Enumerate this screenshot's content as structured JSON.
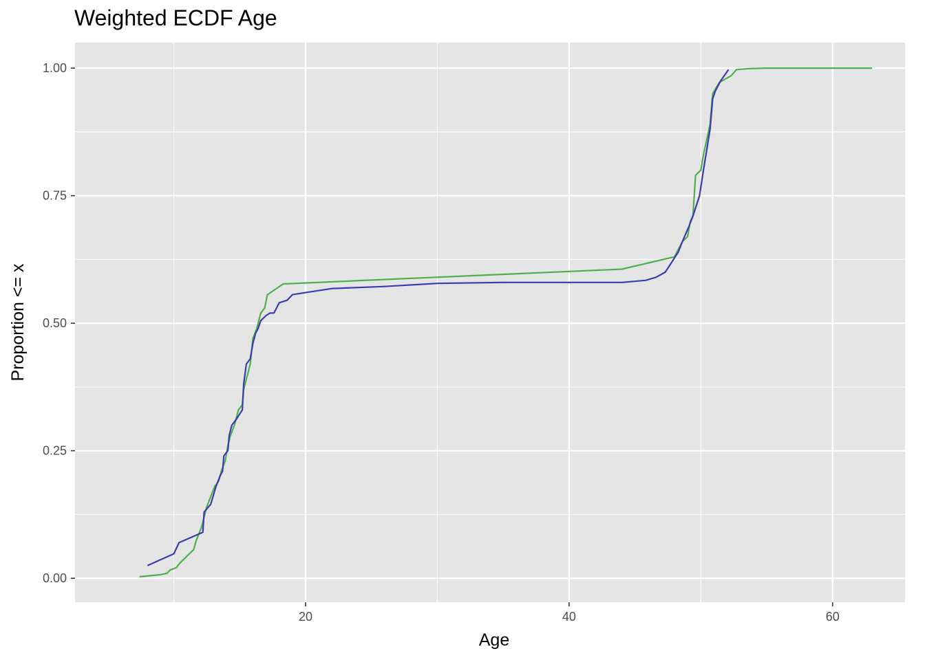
{
  "chart_data": {
    "type": "line",
    "title": "Weighted ECDF Age",
    "xlabel": "Age",
    "ylabel": "Proportion <= x",
    "xlim": [
      2.5,
      65.5
    ],
    "ylim": [
      -0.047,
      1.05
    ],
    "x_ticks": [
      20,
      40,
      60
    ],
    "x_tick_labels": [
      "20",
      "40",
      "60"
    ],
    "y_ticks": [
      0,
      0.25,
      0.5,
      0.75,
      1
    ],
    "y_tick_labels": [
      "0.00",
      "0.25",
      "0.50",
      "0.75",
      "1.00"
    ],
    "grid": true,
    "background": "#e5e5e5",
    "series": [
      {
        "color": "#4daf4a",
        "points": [
          [
            7.4,
            0.003
          ],
          [
            9.0,
            0.007
          ],
          [
            9.5,
            0.01
          ],
          [
            9.7,
            0.016
          ],
          [
            10.2,
            0.021
          ],
          [
            10.4,
            0.028
          ],
          [
            11.1,
            0.046
          ],
          [
            11.5,
            0.056
          ],
          [
            11.7,
            0.074
          ],
          [
            12.1,
            0.1
          ],
          [
            12.3,
            0.12
          ],
          [
            12.5,
            0.14
          ],
          [
            12.8,
            0.16
          ],
          [
            13.1,
            0.18
          ],
          [
            13.4,
            0.19
          ],
          [
            13.6,
            0.21
          ],
          [
            13.9,
            0.23
          ],
          [
            14.1,
            0.26
          ],
          [
            14.3,
            0.28
          ],
          [
            14.6,
            0.3
          ],
          [
            14.9,
            0.33
          ],
          [
            15.2,
            0.34
          ],
          [
            15.3,
            0.37
          ],
          [
            15.5,
            0.39
          ],
          [
            15.8,
            0.42
          ],
          [
            16.0,
            0.47
          ],
          [
            16.3,
            0.49
          ],
          [
            16.6,
            0.52
          ],
          [
            16.9,
            0.53
          ],
          [
            17.1,
            0.556
          ],
          [
            18.3,
            0.577
          ],
          [
            44.0,
            0.606
          ],
          [
            48.0,
            0.63
          ],
          [
            48.6,
            0.66
          ],
          [
            49.0,
            0.67
          ],
          [
            49.2,
            0.7
          ],
          [
            49.4,
            0.71
          ],
          [
            49.6,
            0.79
          ],
          [
            50.0,
            0.8
          ],
          [
            50.2,
            0.83
          ],
          [
            50.7,
            0.89
          ],
          [
            50.9,
            0.95
          ],
          [
            51.4,
            0.972
          ],
          [
            52.3,
            0.985
          ],
          [
            52.7,
            0.997
          ],
          [
            53.6,
            0.999
          ],
          [
            55.0,
            1.0
          ],
          [
            63.0,
            1.0
          ]
        ]
      },
      {
        "color": "#3a3ab0",
        "points": [
          [
            8.0,
            0.025
          ],
          [
            10.0,
            0.048
          ],
          [
            10.4,
            0.07
          ],
          [
            12.2,
            0.09
          ],
          [
            12.3,
            0.13
          ],
          [
            12.8,
            0.145
          ],
          [
            13.2,
            0.18
          ],
          [
            13.5,
            0.2
          ],
          [
            13.7,
            0.21
          ],
          [
            13.8,
            0.24
          ],
          [
            14.1,
            0.25
          ],
          [
            14.2,
            0.28
          ],
          [
            14.4,
            0.3
          ],
          [
            14.7,
            0.31
          ],
          [
            15.2,
            0.33
          ],
          [
            15.3,
            0.38
          ],
          [
            15.5,
            0.42
          ],
          [
            15.8,
            0.43
          ],
          [
            16.0,
            0.46
          ],
          [
            16.2,
            0.48
          ],
          [
            16.4,
            0.49
          ],
          [
            16.6,
            0.505
          ],
          [
            17.0,
            0.515
          ],
          [
            17.3,
            0.52
          ],
          [
            17.6,
            0.52
          ],
          [
            18.0,
            0.54
          ],
          [
            18.6,
            0.545
          ],
          [
            19.0,
            0.556
          ],
          [
            20.0,
            0.56
          ],
          [
            22.0,
            0.568
          ],
          [
            26.0,
            0.572
          ],
          [
            30.0,
            0.578
          ],
          [
            35.0,
            0.58
          ],
          [
            40.0,
            0.58
          ],
          [
            44.0,
            0.58
          ],
          [
            45.8,
            0.584
          ],
          [
            46.6,
            0.59
          ],
          [
            47.3,
            0.6
          ],
          [
            47.8,
            0.62
          ],
          [
            48.3,
            0.64
          ],
          [
            48.6,
            0.66
          ],
          [
            49.1,
            0.69
          ],
          [
            49.4,
            0.71
          ],
          [
            49.9,
            0.75
          ],
          [
            50.2,
            0.8
          ],
          [
            50.7,
            0.88
          ],
          [
            50.9,
            0.94
          ],
          [
            51.1,
            0.955
          ],
          [
            51.5,
            0.975
          ],
          [
            52.1,
            0.997
          ]
        ]
      }
    ]
  }
}
